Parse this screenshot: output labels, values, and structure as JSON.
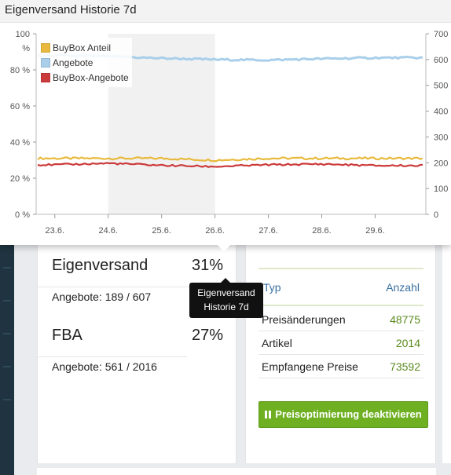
{
  "popup": {
    "title": "Eigenversand Historie 7d"
  },
  "chart_data": {
    "type": "line",
    "x_ticks": [
      "23.6.",
      "24.6.",
      "25.6.",
      "26.6.",
      "27.6.",
      "28.6.",
      "29.6."
    ],
    "y_left_ticks": [
      "0 %",
      "20 %",
      "40 %",
      "60 %",
      "80 %",
      "100 %"
    ],
    "y_left_ylim": [
      0,
      100
    ],
    "y_right_ticks": [
      "0",
      "100",
      "200",
      "300",
      "400",
      "500",
      "600",
      "700"
    ],
    "y_right_ylim": [
      0,
      700
    ],
    "highlight_range": [
      "24.6.",
      "26.6."
    ],
    "legend_position": "top-left",
    "series": [
      {
        "name": "BuyBox Anteil",
        "color": "#e8b93c",
        "axis": "left",
        "x": [
          "23.6.",
          "24.6.",
          "25.6.",
          "26.6.",
          "27.6.",
          "28.6.",
          "29.6."
        ],
        "values": [
          31,
          31,
          31,
          30,
          31,
          31,
          31
        ]
      },
      {
        "name": "Angebote",
        "color": "#a9cfea",
        "axis": "right",
        "x": [
          "23.6.",
          "24.6.",
          "25.6.",
          "26.6.",
          "27.6.",
          "28.6.",
          "29.6."
        ],
        "values": [
          615,
          612,
          605,
          600,
          598,
          603,
          607
        ]
      },
      {
        "name": "BuyBox-Angebote",
        "color": "#cc3b3b",
        "axis": "right",
        "x": [
          "23.6.",
          "24.6.",
          "25.6.",
          "26.6.",
          "27.6.",
          "28.6.",
          "29.6."
        ],
        "values": [
          192,
          198,
          190,
          185,
          192,
          195,
          189
        ]
      }
    ]
  },
  "stats": {
    "eigenversand": {
      "title": "Eigenversand",
      "percent": "31%",
      "offers": "Angebote: 189 / 607"
    },
    "fba": {
      "title": "FBA",
      "percent": "27%",
      "offers": "Angebote: 561 / 2016"
    }
  },
  "tooltip": {
    "line1": "Eigenversand",
    "line2": "Historie 7d"
  },
  "table": {
    "col_typ": "Typ",
    "col_anzahl": "Anzahl",
    "rows": [
      {
        "label": "Preisänderungen",
        "value": "48775"
      },
      {
        "label": "Artikel",
        "value": "2014"
      },
      {
        "label": "Empfangene Preise",
        "value": "73592"
      }
    ]
  },
  "button": {
    "label": "Preisoptimierung deaktivieren"
  }
}
